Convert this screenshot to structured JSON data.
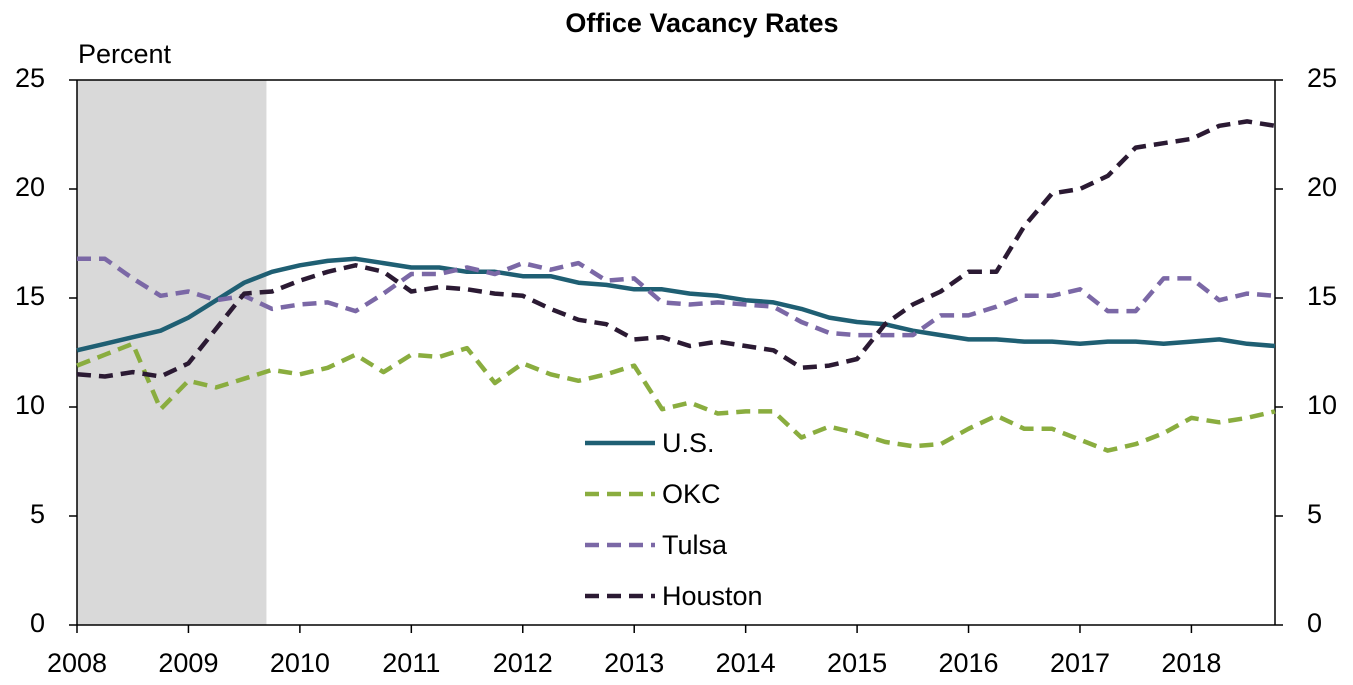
{
  "chart_data": {
    "type": "line",
    "title": "Office Vacancy Rates",
    "y_label": "Percent",
    "xlim": [
      2008,
      2018.75
    ],
    "xticks": [
      2008,
      2009,
      2010,
      2011,
      2012,
      2013,
      2014,
      2015,
      2016,
      2017,
      2018
    ],
    "ylim": [
      0,
      25
    ],
    "yticks": [
      0,
      5,
      10,
      15,
      20,
      25
    ],
    "y2lim": [
      0,
      25
    ],
    "y2ticks": [
      0,
      5,
      10,
      15,
      20,
      25
    ],
    "shaded_range": [
      2008,
      2009.7
    ],
    "shade_color": "#d9d9d9",
    "legend": "center",
    "x": [
      2008,
      2008.25,
      2008.5,
      2008.75,
      2009,
      2009.25,
      2009.5,
      2009.75,
      2010,
      2010.25,
      2010.5,
      2010.75,
      2011,
      2011.25,
      2011.5,
      2011.75,
      2012,
      2012.25,
      2012.5,
      2012.75,
      2013,
      2013.25,
      2013.5,
      2013.75,
      2014,
      2014.25,
      2014.5,
      2014.75,
      2015,
      2015.25,
      2015.5,
      2015.75,
      2016,
      2016.25,
      2016.5,
      2016.75,
      2017,
      2017.25,
      2017.5,
      2017.75,
      2018,
      2018.25,
      2018.5,
      2018.75
    ],
    "series": [
      {
        "name": "U.S.",
        "color": "#1f5f73",
        "style": "solid",
        "values": [
          12.6,
          12.9,
          13.2,
          13.5,
          14.1,
          14.9,
          15.7,
          16.2,
          16.5,
          16.7,
          16.8,
          16.6,
          16.4,
          16.4,
          16.2,
          16.2,
          16.0,
          16.0,
          15.7,
          15.6,
          15.4,
          15.4,
          15.2,
          15.1,
          14.9,
          14.8,
          14.5,
          14.1,
          13.9,
          13.8,
          13.5,
          13.3,
          13.1,
          13.1,
          13.0,
          13.0,
          12.9,
          13.0,
          13.0,
          12.9,
          13.0,
          13.1,
          12.9,
          12.8
        ]
      },
      {
        "name": "OKC",
        "color": "#8aad3f",
        "style": "dashed",
        "values": [
          11.9,
          12.4,
          12.9,
          9.9,
          11.2,
          10.9,
          11.3,
          11.7,
          11.5,
          11.8,
          12.4,
          11.6,
          12.4,
          12.3,
          12.7,
          11.1,
          12.0,
          11.5,
          11.2,
          11.5,
          11.9,
          9.9,
          10.2,
          9.7,
          9.8,
          9.8,
          8.6,
          9.1,
          8.8,
          8.4,
          8.2,
          8.3,
          9.0,
          9.6,
          9.0,
          9.0,
          8.5,
          8.0,
          8.3,
          8.8,
          9.5,
          9.3,
          9.5,
          9.8
        ]
      },
      {
        "name": "Tulsa",
        "color": "#7b68a6",
        "style": "dashed",
        "values": [
          16.8,
          16.8,
          15.9,
          15.1,
          15.3,
          14.9,
          15.1,
          14.5,
          14.7,
          14.8,
          14.4,
          15.2,
          16.1,
          16.1,
          16.4,
          16.1,
          16.6,
          16.3,
          16.6,
          15.8,
          15.9,
          14.8,
          14.7,
          14.8,
          14.7,
          14.6,
          13.9,
          13.4,
          13.3,
          13.3,
          13.3,
          14.2,
          14.2,
          14.6,
          15.1,
          15.1,
          15.4,
          14.4,
          14.4,
          15.9,
          15.9,
          14.9,
          15.2,
          15.1
        ]
      },
      {
        "name": "Houston",
        "color": "#2b1a33",
        "style": "dashed",
        "values": [
          11.5,
          11.4,
          11.6,
          11.4,
          12.0,
          13.6,
          15.2,
          15.3,
          15.8,
          16.2,
          16.5,
          16.2,
          15.3,
          15.5,
          15.4,
          15.2,
          15.1,
          14.5,
          14.0,
          13.8,
          13.1,
          13.2,
          12.8,
          13.0,
          12.8,
          12.6,
          11.8,
          11.9,
          12.2,
          13.8,
          14.7,
          15.3,
          16.2,
          16.2,
          18.3,
          19.8,
          20.0,
          20.6,
          21.9,
          22.1,
          22.3,
          22.9,
          23.1,
          22.9
        ]
      }
    ]
  }
}
